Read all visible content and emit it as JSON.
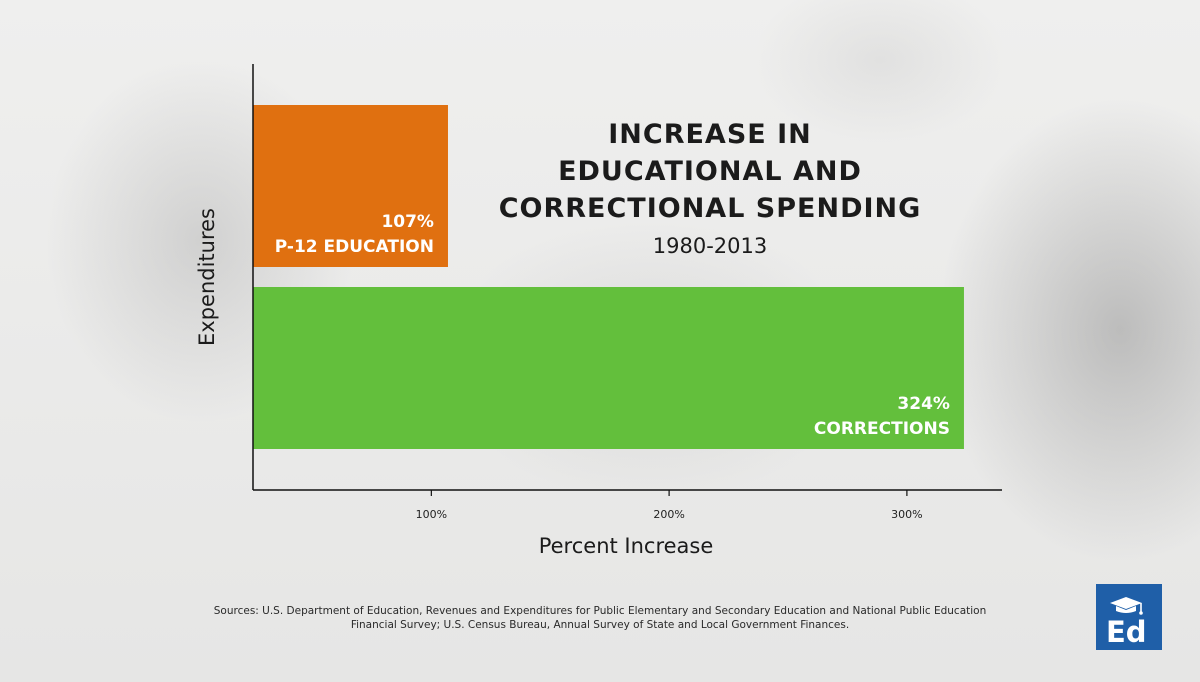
{
  "chart_data": {
    "type": "bar",
    "orientation": "horizontal",
    "title_lines": [
      "INCREASE IN",
      "EDUCATIONAL AND",
      "CORRECTIONAL SPENDING"
    ],
    "subtitle": "1980-2013",
    "xlabel": "Percent Increase",
    "ylabel": "Expenditures",
    "xlim": [
      25,
      340
    ],
    "xticks": [
      {
        "value": 100,
        "label": "100%"
      },
      {
        "value": 200,
        "label": "200%"
      },
      {
        "value": 300,
        "label": "300%"
      }
    ],
    "bars": [
      {
        "category": "P-12 EDUCATION",
        "value": 107,
        "value_label": "107%",
        "color": "#e07010"
      },
      {
        "category": "CORRECTIONS",
        "value": 324,
        "value_label": "324%",
        "color": "#63bf3c"
      }
    ],
    "grid": false,
    "legend": "none"
  },
  "source_lines": [
    "Sources: U.S. Department of Education, Revenues and Expenditures for Public Elementary and Secondary Education and National Public Education",
    "Financial Survey; U.S. Census Bureau, Annual Survey of State and Local Government Finances."
  ],
  "logo": {
    "text": "Ed",
    "icon": "graduation-cap-icon",
    "color": "#1f5fa8"
  }
}
